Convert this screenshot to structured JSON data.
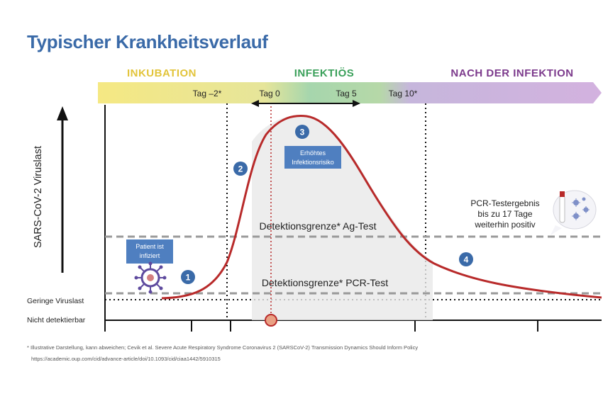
{
  "title": "Typischer Krankheitsverlauf",
  "phases": {
    "incubation": "INKUBATION",
    "infectious": "INFEKTIÖS",
    "after": "NACH DER INFEKTION"
  },
  "timeline": {
    "tag_minus2": "Tag –2*",
    "tag_0": "Tag 0",
    "tag_5": "Tag 5",
    "tag_10": "Tag 10*"
  },
  "y_axis_label": "SARS-CoV-2 Viruslast",
  "levels": {
    "low_viral_load": "Geringe Viruslast",
    "not_detectable": "Nicht detektierbar"
  },
  "thresholds": {
    "ag_test": "Detektionsgrenze* Ag-Test",
    "pcr_test": "Detektionsgrenze* PCR-Test"
  },
  "boxes": {
    "infected_line1": "Patient ist",
    "infected_line2": "infiziert",
    "risk_line1": "Erhöhtes",
    "risk_line2": "Infektionsrisiko"
  },
  "markers": [
    "1",
    "2",
    "3",
    "4"
  ],
  "pcr_note": {
    "line1": "PCR-Testergebnis",
    "line2": "bis zu 17 Tage",
    "line3": "weiterhin positiv"
  },
  "footnote": {
    "line1": "* Illustrative Darstellung, kann abweichen; Cevik et al. Severe Acute Respiratory Syndrome Coronavirus 2 (SARSCoV-2) Transmission Dynamics Should Inform Policy",
    "line2": "https://academic.oup.com/cid/advance-article/doi/10.1093/cid/ciaa1442/5910315"
  },
  "colors": {
    "title": "#3a6aa8",
    "incubation": "#f4e27a",
    "infectious": "#9fd0a8",
    "after": "#c9a5d8",
    "curve": "#b82a2a",
    "marker": "#3a6aa8"
  }
}
